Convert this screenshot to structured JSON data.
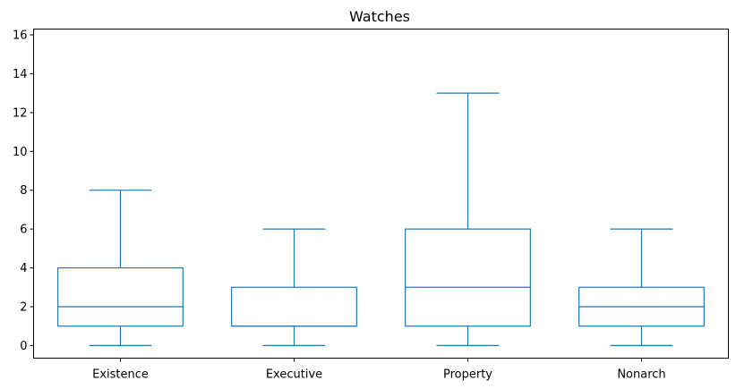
{
  "chart_data": {
    "type": "box",
    "title": "Watches",
    "xlabel": "",
    "ylabel": "",
    "ylim": [
      -0.65,
      16.3
    ],
    "yticks": [
      0,
      2,
      4,
      6,
      8,
      10,
      12,
      14,
      16
    ],
    "grid": false,
    "color": "#1f77b4",
    "categories": [
      "Existence",
      "Executive",
      "Property",
      "Nonarch"
    ],
    "boxes": [
      {
        "category": "Existence",
        "whisker_low": 0,
        "q1": 1,
        "median": 2,
        "q3": 4,
        "whisker_high": 8
      },
      {
        "category": "Executive",
        "whisker_low": 0,
        "q1": 1,
        "median": 1,
        "q3": 3,
        "whisker_high": 6
      },
      {
        "category": "Property",
        "whisker_low": 0,
        "q1": 1,
        "median": 3,
        "q3": 6,
        "whisker_high": 13
      },
      {
        "category": "Nonarch",
        "whisker_low": 0,
        "q1": 1,
        "median": 2,
        "q3": 3,
        "whisker_high": 6
      }
    ]
  }
}
